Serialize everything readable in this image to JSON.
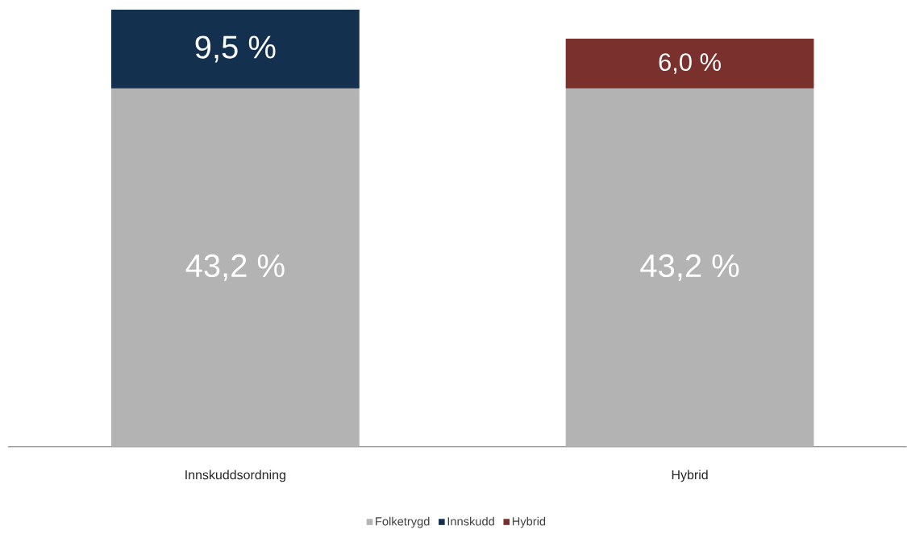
{
  "chart_data": {
    "type": "bar",
    "stacked": true,
    "legend": "bottom",
    "categories": [
      "Innskuddsordning",
      "Hybrid"
    ],
    "series": [
      {
        "name": "Folketrygd",
        "color": "#b3b3b3",
        "values": [
          43.2,
          43.2
        ],
        "value_labels": [
          "43,2 %",
          "43,2 %"
        ]
      },
      {
        "name": "Innskudd",
        "color": "#14304f",
        "values": [
          9.5,
          null
        ],
        "value_labels": [
          "9,5 %",
          null
        ]
      },
      {
        "name": "Hybrid",
        "color": "#7a302c",
        "values": [
          null,
          6.0
        ],
        "value_labels": [
          null,
          "6,0 %"
        ]
      }
    ]
  }
}
